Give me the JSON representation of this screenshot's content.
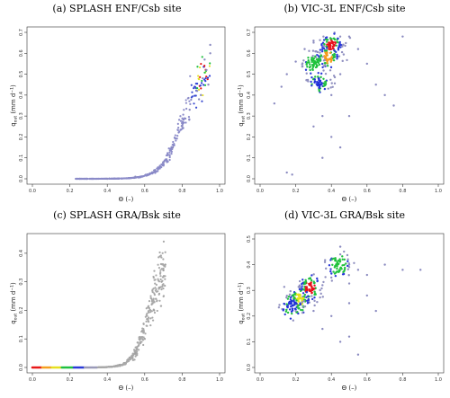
{
  "chart_data": [
    {
      "id": "a",
      "type": "scatter",
      "title": "(a) SPLASH ENF/Csb site",
      "xlabel": "Θ (–)",
      "ylabel": "q",
      "ylabel_sub": "out",
      "ylabel_units": " (mm d",
      "ylabel_sup": "−1",
      "ylabel_close": ")",
      "xlim": [
        0,
        1.0
      ],
      "ylim": [
        0,
        0.7
      ],
      "xticks": [
        "0.0",
        "0.2",
        "0.4",
        "0.6",
        "0.8",
        "1.0"
      ],
      "yticks": [
        "0.0",
        "0.1",
        "0.2",
        "0.3",
        "0.4",
        "0.5",
        "0.6",
        "0.7"
      ],
      "grid": false,
      "color_scale": "point density (grey → blue → green → yellow → red)",
      "curve": {
        "type": "logistic",
        "x_start": 0.23,
        "x_end": 0.95,
        "y_min": 0.0,
        "y_max": 0.55,
        "x_mid": 0.8,
        "steepness": 0.055
      },
      "points": [
        [
          0.4,
          0.0
        ],
        [
          0.55,
          0.01
        ],
        [
          0.65,
          0.04
        ],
        [
          0.7,
          0.08
        ],
        [
          0.75,
          0.15
        ],
        [
          0.8,
          0.25
        ],
        [
          0.84,
          0.33
        ],
        [
          0.88,
          0.42
        ],
        [
          0.91,
          0.48
        ],
        [
          0.93,
          0.52
        ],
        [
          0.95,
          0.6
        ],
        [
          0.9,
          0.4
        ],
        [
          0.94,
          0.45
        ],
        [
          0.92,
          0.57
        ],
        [
          0.89,
          0.38
        ],
        [
          0.95,
          0.64
        ]
      ]
    },
    {
      "id": "b",
      "type": "scatter",
      "title": "(b) VIC-3L ENF/Csb site",
      "xlabel": "Θ (–)",
      "ylabel": "q",
      "ylabel_sub": "out",
      "ylabel_units": " (mm d",
      "ylabel_sup": "−1",
      "ylabel_close": ")",
      "xlim": [
        0,
        1.0
      ],
      "ylim": [
        0,
        0.7
      ],
      "xticks": [
        "0.0",
        "0.2",
        "0.4",
        "0.6",
        "0.8",
        "1.0"
      ],
      "yticks": [
        "0.0",
        "0.1",
        "0.2",
        "0.3",
        "0.4",
        "0.5",
        "0.6",
        "0.7"
      ],
      "grid": false,
      "color_scale": "point density (grey → blue → green → yellow → red)",
      "hotspots": [
        {
          "x": 0.4,
          "y": 0.64,
          "level": "red"
        },
        {
          "x": 0.38,
          "y": 0.58,
          "level": "orange"
        },
        {
          "x": 0.3,
          "y": 0.55,
          "level": "green"
        },
        {
          "x": 0.33,
          "y": 0.46,
          "level": "blue"
        }
      ],
      "points": [
        [
          0.08,
          0.36
        ],
        [
          0.12,
          0.44
        ],
        [
          0.15,
          0.5
        ],
        [
          0.2,
          0.56
        ],
        [
          0.25,
          0.62
        ],
        [
          0.3,
          0.66
        ],
        [
          0.5,
          0.68
        ],
        [
          0.55,
          0.62
        ],
        [
          0.6,
          0.55
        ],
        [
          0.45,
          0.5
        ],
        [
          0.4,
          0.4
        ],
        [
          0.35,
          0.3
        ],
        [
          0.3,
          0.25
        ],
        [
          0.4,
          0.2
        ],
        [
          0.45,
          0.15
        ],
        [
          0.35,
          0.1
        ],
        [
          0.15,
          0.03
        ],
        [
          0.18,
          0.02
        ],
        [
          0.65,
          0.45
        ],
        [
          0.7,
          0.4
        ],
        [
          0.75,
          0.35
        ],
        [
          0.8,
          0.68
        ],
        [
          0.5,
          0.3
        ]
      ]
    },
    {
      "id": "c",
      "type": "scatter",
      "title": "(c) SPLASH GRA/Bsk site",
      "xlabel": "Θ (–)",
      "ylabel": "q",
      "ylabel_sub": "out",
      "ylabel_units": " (mm d",
      "ylabel_sup": "−1",
      "ylabel_close": ")",
      "xlim": [
        0,
        1.0
      ],
      "ylim": [
        0,
        0.45
      ],
      "xticks": [
        "0.0",
        "0.2",
        "0.4",
        "0.6",
        "0.8",
        "1.0"
      ],
      "yticks": [
        "0.0",
        "0.1",
        "0.2",
        "0.3",
        "0.4"
      ],
      "grid": false,
      "color_scale": "point density (grey → blue → green → yellow → red)",
      "baseline": {
        "x_start": 0.0,
        "x_end": 0.35,
        "y": 0.0
      },
      "curve": {
        "type": "logistic",
        "x_start": 0.35,
        "x_end": 0.71,
        "y_min": 0.0,
        "y_max": 0.37,
        "x_mid": 0.62,
        "steepness": 0.04
      },
      "points": [
        [
          0.55,
          0.05
        ],
        [
          0.6,
          0.1
        ],
        [
          0.65,
          0.2
        ],
        [
          0.68,
          0.28
        ],
        [
          0.7,
          0.34
        ],
        [
          0.71,
          0.36
        ],
        [
          0.69,
          0.3
        ],
        [
          0.66,
          0.24
        ]
      ]
    },
    {
      "id": "d",
      "type": "scatter",
      "title": "(d) VIC-3L GRA/Bsk site",
      "xlabel": "Θ (–)",
      "ylabel": "q",
      "ylabel_sub": "out",
      "ylabel_units": " (mm d",
      "ylabel_sup": "−1",
      "ylabel_close": ")",
      "xlim": [
        0,
        1.0
      ],
      "ylim": [
        0,
        0.5
      ],
      "xticks": [
        "0.0",
        "0.2",
        "0.4",
        "0.6",
        "0.8",
        "1.0"
      ],
      "yticks": [
        "0.0",
        "0.1",
        "0.2",
        "0.3",
        "0.4",
        "0.5"
      ],
      "grid": false,
      "color_scale": "point density (grey → blue → green → yellow → red)",
      "hotspots": [
        {
          "x": 0.28,
          "y": 0.31,
          "level": "red"
        },
        {
          "x": 0.22,
          "y": 0.26,
          "level": "yellow"
        },
        {
          "x": 0.44,
          "y": 0.4,
          "level": "green"
        },
        {
          "x": 0.18,
          "y": 0.24,
          "level": "blue"
        }
      ],
      "points": [
        [
          0.45,
          0.47
        ],
        [
          0.45,
          0.44
        ],
        [
          0.5,
          0.4
        ],
        [
          0.55,
          0.38
        ],
        [
          0.6,
          0.36
        ],
        [
          0.7,
          0.4
        ],
        [
          0.8,
          0.38
        ],
        [
          0.9,
          0.38
        ],
        [
          0.4,
          0.35
        ],
        [
          0.35,
          0.32
        ],
        [
          0.3,
          0.22
        ],
        [
          0.4,
          0.2
        ],
        [
          0.5,
          0.25
        ],
        [
          0.6,
          0.28
        ],
        [
          0.45,
          0.1
        ],
        [
          0.5,
          0.12
        ],
        [
          0.55,
          0.05
        ],
        [
          0.35,
          0.15
        ],
        [
          0.65,
          0.22
        ],
        [
          0.2,
          0.22
        ]
      ]
    }
  ]
}
